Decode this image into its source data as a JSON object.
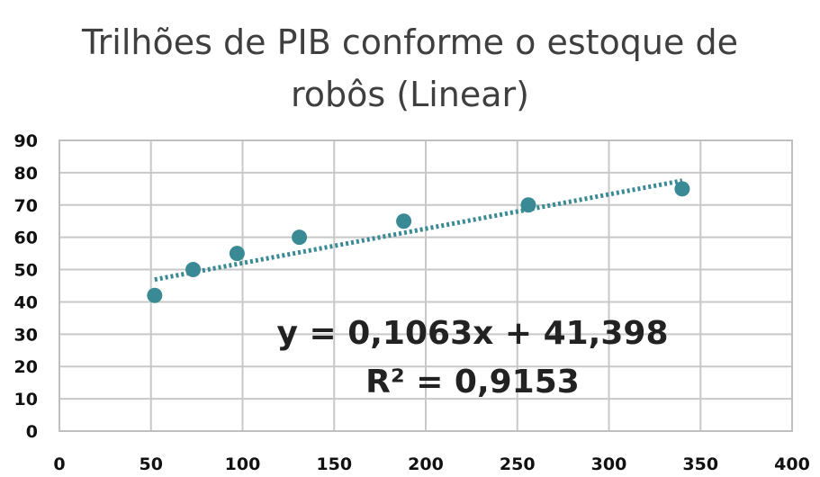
{
  "chart_data": {
    "type": "scatter",
    "title_line1": "Trilhões de PIB conforme o estoque de",
    "title_line2": "robôs (Linear)",
    "x": [
      52,
      73,
      97,
      131,
      188,
      256,
      340
    ],
    "y": [
      42,
      50,
      55,
      60,
      65,
      70,
      75
    ],
    "xlim": [
      0,
      400
    ],
    "ylim": [
      0,
      90
    ],
    "x_ticks": [
      0,
      50,
      100,
      150,
      200,
      250,
      300,
      350,
      400
    ],
    "y_ticks": [
      0,
      10,
      20,
      30,
      40,
      50,
      60,
      70,
      80,
      90
    ],
    "grid": true,
    "trendline": {
      "type": "linear",
      "slope": 0.1063,
      "intercept": 41.398,
      "x_range": [
        52,
        340
      ]
    },
    "equation_label": "y = 0,1063x + 41,398",
    "r2_label": "R² = 0,9153",
    "colors": {
      "marker": "#3a8a95",
      "trendline": "#3a8a95",
      "grid": "#c8c8c8"
    }
  }
}
